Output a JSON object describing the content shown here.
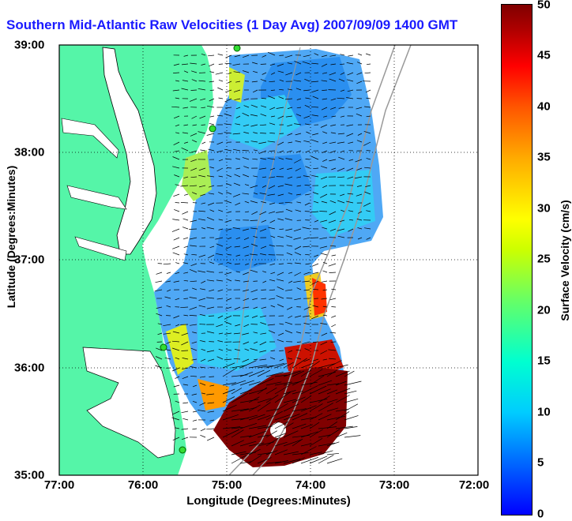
{
  "title": "Southern Mid-Atlantic Raw Velocities (1 Day Avg) 2007/09/09 1400 GMT",
  "x_axis": {
    "label": "Longitude (Degrees:Minutes)",
    "ticks": [
      "77:00",
      "76:00",
      "75:00",
      "74:00",
      "73:00",
      "72:00"
    ]
  },
  "y_axis": {
    "label": "Latitude (Degrees:Minutes)",
    "ticks": [
      "39:00",
      "38:00",
      "37:00",
      "36:00",
      "35:00"
    ]
  },
  "colorbar": {
    "label": "Surface Velocity (cm/s)",
    "ticks": [
      "50",
      "45",
      "40",
      "35",
      "30",
      "25",
      "20",
      "15",
      "10",
      "5",
      "0"
    ],
    "min": 0,
    "max": 50
  },
  "colors": {
    "land": "#55f5a8",
    "water": "#ffffff",
    "title": "#1a1aff",
    "arrows": "#000000"
  }
}
